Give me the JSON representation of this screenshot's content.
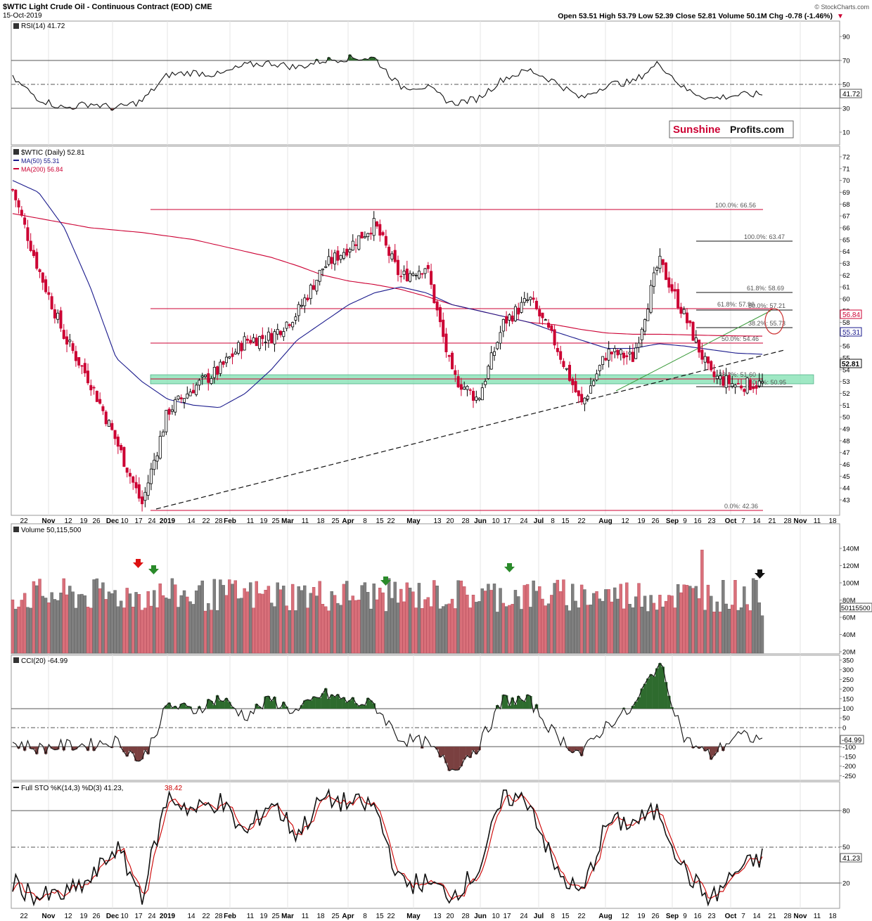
{
  "header": {
    "title": "$WTIC Light Crude Oil - Continuous Contract (EOD) CME",
    "date": "15-Oct-2019",
    "quote": "Open 53.51  High 53.79  Low 52.39  Close 52.81  Volume 50.1M  Chg -0.78 (-1.46%)",
    "copyright": "© StockCharts.com"
  },
  "watermark": {
    "part1": "Sunshine",
    "part2": "Profits.com"
  },
  "panels": {
    "rsi": {
      "label": "RSI(14) 41.72",
      "value_tag": "41.72",
      "ticks": [
        "90",
        "70",
        "50",
        "30",
        "10"
      ]
    },
    "price": {
      "label": "$WTIC (Daily) 52.81",
      "ma50_label": "MA(50) 55.31",
      "ma200_label": "MA(200) 56.84",
      "ma50_tag": "55.31",
      "ma200_tag": "56.84",
      "last_tag": "52.81",
      "ticks": [
        "72",
        "71",
        "70",
        "69",
        "68",
        "67",
        "66",
        "65",
        "64",
        "63",
        "62",
        "61",
        "60",
        "59",
        "58",
        "57",
        "56",
        "55",
        "54",
        "53",
        "52",
        "51",
        "50",
        "49",
        "48",
        "47",
        "46",
        "45",
        "44",
        "43"
      ],
      "fib_left": [
        "100.0%: 66.56",
        "61.8%: 57.96",
        "50.0%: 54.46",
        "38.2%: 51.60",
        "0.0%: 42.36"
      ],
      "fib_right": [
        "100.0%: 63.47",
        "61.8%: 58.69",
        "50.0%: 57.21",
        "38.2%: 55.73",
        "0.0%: 50.95"
      ]
    },
    "volume": {
      "label": "Volume 50,115,500",
      "value_tag": "50115500",
      "ticks": [
        "140M",
        "120M",
        "100M",
        "80M",
        "60M",
        "40M",
        "20M"
      ]
    },
    "cci": {
      "label": "CCI(20) -64.99",
      "value_tag": "-64.99",
      "ticks": [
        "350",
        "300",
        "250",
        "200",
        "150",
        "100",
        "50",
        "0",
        "-50",
        "-100",
        "-150",
        "-200",
        "-250"
      ]
    },
    "sto": {
      "label_main": "Full STO %K(14,3) %D(3) 41.23,",
      "label_d": "38.42",
      "value_tag": "41.23",
      "ticks": [
        "80",
        "50",
        "20"
      ]
    }
  },
  "x_axis": [
    "22",
    "Nov",
    "12",
    "19",
    "26",
    "Dec",
    "10",
    "17",
    "24",
    "2019",
    "14",
    "22",
    "28",
    "Feb",
    "11",
    "19",
    "25",
    "Mar",
    "11",
    "18",
    "25",
    "Apr",
    "8",
    "15",
    "22",
    "May",
    "13",
    "20",
    "28",
    "Jun",
    "10",
    "17",
    "24",
    "Jul",
    "8",
    "15",
    "22",
    "Aug",
    "12",
    "19",
    "26",
    "Sep",
    "9",
    "16",
    "23",
    "Oct",
    "7",
    "14",
    "21",
    "28",
    "Nov",
    "11",
    "18"
  ],
  "colors": {
    "up": "#000000",
    "down": "#cc0033",
    "ma50": "#1a1a8c",
    "ma200": "#cc0033",
    "zone": "#7fe0b0",
    "vol_up": "#808080",
    "vol_down": "#d9707a",
    "cci_pos": "#2e6b2e",
    "cci_neg": "#6b2e2e",
    "sto_d": "#cc0000"
  },
  "chart_data": {
    "type": "line",
    "x": [
      "2018-10-22",
      "2018-11-05",
      "2018-11-19",
      "2018-12-03",
      "2018-12-17",
      "2018-12-24",
      "2019-01-07",
      "2019-01-22",
      "2019-02-04",
      "2019-02-19",
      "2019-03-04",
      "2019-03-18",
      "2019-04-01",
      "2019-04-15",
      "2019-04-23",
      "2019-05-06",
      "2019-05-20",
      "2019-06-03",
      "2019-06-12",
      "2019-06-24",
      "2019-07-08",
      "2019-07-22",
      "2019-08-05",
      "2019-08-19",
      "2019-09-03",
      "2019-09-16",
      "2019-09-23",
      "2019-10-01",
      "2019-10-08",
      "2019-10-15"
    ],
    "series": [
      {
        "name": "$WTIC (Daily)",
        "values": [
          69.2,
          62.5,
          56.8,
          53.0,
          48.0,
          42.6,
          50.5,
          52.5,
          54.0,
          56.5,
          56.8,
          58.8,
          62.6,
          64.4,
          66.3,
          61.8,
          62.8,
          53.5,
          51.5,
          58.0,
          60.0,
          56.2,
          51.0,
          55.5,
          55.0,
          63.2,
          58.5,
          53.5,
          52.7,
          52.81
        ]
      },
      {
        "name": "MA(50)",
        "values": [
          70.0,
          69.0,
          66.0,
          61.0,
          55.0,
          53.0,
          51.5,
          51.0,
          50.8,
          52.0,
          54.0,
          56.5,
          58.0,
          59.5,
          60.5,
          61.0,
          60.5,
          59.5,
          59.0,
          58.5,
          58.0,
          57.2,
          56.5,
          55.8,
          55.8,
          56.2,
          56.0,
          55.7,
          55.4,
          55.31
        ]
      },
      {
        "name": "MA(200)",
        "values": [
          67.2,
          66.8,
          66.4,
          66.0,
          65.8,
          65.6,
          65.3,
          65.0,
          64.5,
          64.0,
          63.5,
          62.8,
          62.0,
          61.5,
          61.2,
          60.8,
          60.2,
          59.5,
          59.0,
          58.5,
          58.0,
          57.8,
          57.4,
          57.1,
          57.0,
          57.0,
          56.95,
          56.9,
          56.86,
          56.84
        ]
      }
    ],
    "rsi": [
      55,
      38,
      30,
      34,
      30,
      36,
      58,
      60,
      58,
      66,
      68,
      64,
      70,
      72,
      72,
      48,
      48,
      34,
      38,
      55,
      62,
      52,
      38,
      50,
      52,
      68,
      46,
      38,
      41,
      41.72
    ],
    "cci": [
      -80,
      -110,
      -95,
      -90,
      -70,
      -180,
      120,
      90,
      160,
      60,
      150,
      80,
      180,
      140,
      120,
      -60,
      -80,
      -220,
      -100,
      150,
      140,
      -40,
      -140,
      20,
      100,
      350,
      -60,
      -150,
      -40,
      -64.99
    ],
    "sto_k": [
      20,
      8,
      10,
      22,
      50,
      10,
      92,
      80,
      88,
      60,
      88,
      60,
      90,
      86,
      84,
      20,
      20,
      10,
      30,
      92,
      88,
      30,
      10,
      70,
      70,
      80,
      30,
      5,
      30,
      41.23
    ],
    "sto_d": [
      22,
      10,
      12,
      20,
      45,
      14,
      88,
      82,
      86,
      62,
      86,
      62,
      88,
      86,
      84,
      24,
      22,
      12,
      26,
      88,
      86,
      34,
      14,
      66,
      68,
      78,
      34,
      8,
      26,
      38.42
    ],
    "volume_last": 50115500,
    "ylim": [
      42.36,
      72
    ],
    "grid": true
  }
}
